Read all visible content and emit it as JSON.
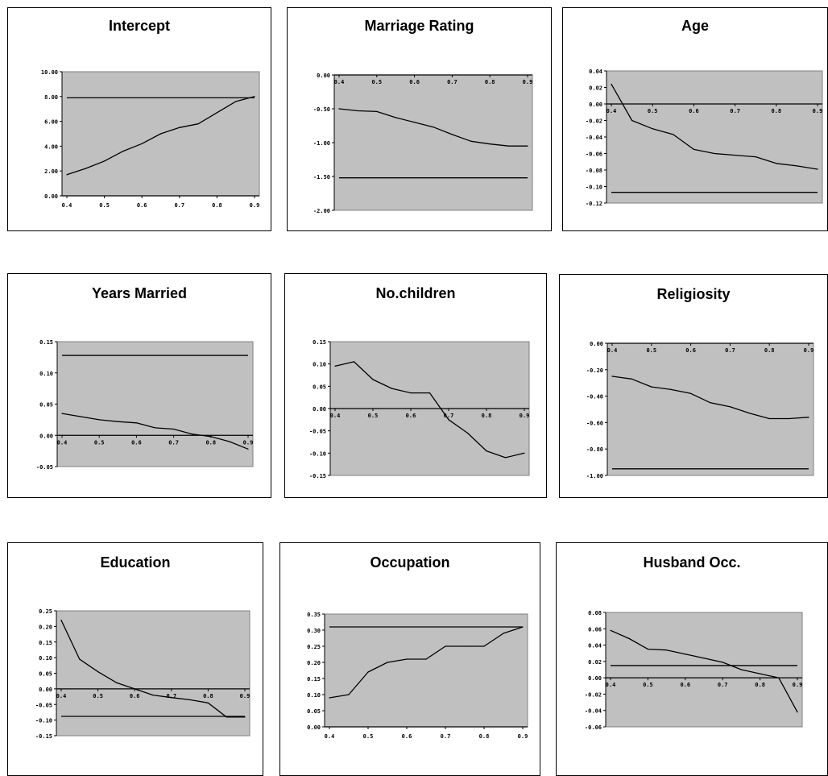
{
  "colors": {
    "plot_background": "#c0c0c0",
    "line": "#000000",
    "panel_border": "#000000"
  },
  "chart_data": [
    {
      "type": "line",
      "title": "Intercept",
      "x": [
        0.4,
        0.45,
        0.5,
        0.55,
        0.6,
        0.65,
        0.7,
        0.75,
        0.8,
        0.85,
        0.9
      ],
      "x_ticks": [
        "0.4",
        "0.5",
        "0.6",
        "0.7",
        "0.8",
        "0.9"
      ],
      "y_ticks": [
        "0.00",
        "2.00",
        "4.00",
        "6.00",
        "8.00",
        "10.00"
      ],
      "ylim": [
        0,
        10
      ],
      "grid": false,
      "series": [
        {
          "values": [
            1.7,
            2.2,
            2.8,
            3.6,
            4.2,
            5.0,
            5.5,
            5.8,
            6.7,
            7.6,
            8.0
          ]
        }
      ],
      "reference_line": 7.9
    },
    {
      "type": "line",
      "title": "Marriage Rating",
      "x": [
        0.4,
        0.45,
        0.5,
        0.55,
        0.6,
        0.65,
        0.7,
        0.75,
        0.8,
        0.85,
        0.9
      ],
      "x_ticks": [
        "0.4",
        "0.5",
        "0.6",
        "0.7",
        "0.8",
        "0.9"
      ],
      "y_ticks": [
        "0.00",
        "-0.50",
        "-1.00",
        "-1.50",
        "-2.00"
      ],
      "ylim": [
        -2,
        0
      ],
      "grid": false,
      "series": [
        {
          "values": [
            -0.5,
            -0.53,
            -0.54,
            -0.63,
            -0.7,
            -0.77,
            -0.88,
            -0.98,
            -1.02,
            -1.05,
            -1.05
          ]
        }
      ],
      "reference_line": -1.52
    },
    {
      "type": "line",
      "title": "Age",
      "x": [
        0.4,
        0.45,
        0.5,
        0.55,
        0.6,
        0.65,
        0.7,
        0.75,
        0.8,
        0.85,
        0.9
      ],
      "x_ticks": [
        "0.4",
        "0.5",
        "0.6",
        "0.7",
        "0.8",
        "0.9"
      ],
      "y_ticks": [
        "0.04",
        "0.02",
        "0.00",
        "-0.02",
        "-0.04",
        "-0.06",
        "-0.08",
        "-0.10",
        "-0.12"
      ],
      "ylim": [
        -0.12,
        0.04
      ],
      "grid": false,
      "series": [
        {
          "values": [
            0.024,
            -0.02,
            -0.03,
            -0.037,
            -0.055,
            -0.06,
            -0.062,
            -0.064,
            -0.072,
            -0.075,
            -0.079
          ]
        }
      ],
      "reference_line": -0.107
    },
    {
      "type": "line",
      "title": "Years Married",
      "x": [
        0.4,
        0.45,
        0.5,
        0.55,
        0.6,
        0.65,
        0.7,
        0.75,
        0.8,
        0.85,
        0.9
      ],
      "x_ticks": [
        "0.4",
        "0.5",
        "0.6",
        "0.7",
        "0.8",
        "0.9"
      ],
      "y_ticks": [
        "0.15",
        "0.10",
        "0.05",
        "0.00",
        "-0.05"
      ],
      "ylim": [
        -0.05,
        0.15
      ],
      "grid": false,
      "series": [
        {
          "values": [
            0.035,
            0.03,
            0.025,
            0.022,
            0.02,
            0.012,
            0.01,
            0.002,
            -0.002,
            -0.01,
            -0.022
          ]
        }
      ],
      "reference_line": 0.128
    },
    {
      "type": "line",
      "title": "No.children",
      "x": [
        0.4,
        0.45,
        0.5,
        0.55,
        0.6,
        0.65,
        0.7,
        0.75,
        0.8,
        0.85,
        0.9
      ],
      "x_ticks": [
        "0.4",
        "0.5",
        "0.6",
        "0.7",
        "0.8",
        "0.9"
      ],
      "y_ticks": [
        "0.15",
        "0.10",
        "0.05",
        "0.00",
        "-0.05",
        "-0.10",
        "-0.15"
      ],
      "ylim": [
        -0.15,
        0.15
      ],
      "grid": false,
      "series": [
        {
          "values": [
            0.095,
            0.105,
            0.065,
            0.045,
            0.035,
            0.035,
            -0.025,
            -0.055,
            -0.095,
            -0.11,
            -0.1
          ]
        }
      ],
      "reference_line": 0.0
    },
    {
      "type": "line",
      "title": "Religiosity",
      "x": [
        0.4,
        0.45,
        0.5,
        0.55,
        0.6,
        0.65,
        0.7,
        0.75,
        0.8,
        0.85,
        0.9
      ],
      "x_ticks": [
        "0.4",
        "0.5",
        "0.6",
        "0.7",
        "0.8",
        "0.9"
      ],
      "y_ticks": [
        "0.00",
        "-0.20",
        "-0.40",
        "-0.60",
        "-0.80",
        "-1.00"
      ],
      "ylim": [
        -1.0,
        0.0
      ],
      "grid": false,
      "series": [
        {
          "values": [
            -0.25,
            -0.27,
            -0.33,
            -0.35,
            -0.38,
            -0.45,
            -0.48,
            -0.53,
            -0.57,
            -0.57,
            -0.56
          ]
        }
      ],
      "reference_line": -0.95
    },
    {
      "type": "line",
      "title": "Education",
      "x": [
        0.4,
        0.45,
        0.5,
        0.55,
        0.6,
        0.65,
        0.7,
        0.75,
        0.8,
        0.85,
        0.9
      ],
      "x_ticks": [
        "0.4",
        "0.5",
        "0.6",
        "0.7",
        "0.8",
        "0.9"
      ],
      "y_ticks": [
        "0.25",
        "0.20",
        "0.15",
        "0.10",
        "0.05",
        "0.00",
        "-0.05",
        "-0.10",
        "-0.15"
      ],
      "ylim": [
        -0.15,
        0.25
      ],
      "grid": false,
      "series": [
        {
          "values": [
            0.22,
            0.095,
            0.055,
            0.02,
            0.0,
            -0.02,
            -0.028,
            -0.035,
            -0.045,
            -0.09,
            -0.09
          ]
        }
      ],
      "reference_line": -0.088
    },
    {
      "type": "line",
      "title": "Occupation",
      "x": [
        0.4,
        0.45,
        0.5,
        0.55,
        0.6,
        0.65,
        0.7,
        0.75,
        0.8,
        0.85,
        0.9
      ],
      "x_ticks": [
        "0.4",
        "0.5",
        "0.6",
        "0.7",
        "0.8",
        "0.9"
      ],
      "y_ticks": [
        "0.35",
        "0.30",
        "0.25",
        "0.20",
        "0.15",
        "0.10",
        "0.05",
        "0.00"
      ],
      "ylim": [
        0,
        0.35
      ],
      "grid": false,
      "series": [
        {
          "values": [
            0.09,
            0.1,
            0.17,
            0.2,
            0.21,
            0.21,
            0.25,
            0.25,
            0.25,
            0.29,
            0.31
          ]
        }
      ],
      "reference_line": 0.31
    },
    {
      "type": "line",
      "title": "Husband Occ.",
      "x": [
        0.4,
        0.45,
        0.5,
        0.55,
        0.6,
        0.65,
        0.7,
        0.75,
        0.8,
        0.85,
        0.9
      ],
      "x_ticks": [
        "0.4",
        "0.5",
        "0.6",
        "0.7",
        "0.8",
        "0.9"
      ],
      "y_ticks": [
        "0.08",
        "0.06",
        "0.04",
        "0.02",
        "0.00",
        "-0.02",
        "-0.04",
        "-0.06"
      ],
      "ylim": [
        -0.06,
        0.08
      ],
      "grid": false,
      "series": [
        {
          "values": [
            0.058,
            0.048,
            0.035,
            0.034,
            0.029,
            0.024,
            0.019,
            0.01,
            0.005,
            0.0,
            -0.042
          ]
        }
      ],
      "reference_line": 0.015
    }
  ]
}
